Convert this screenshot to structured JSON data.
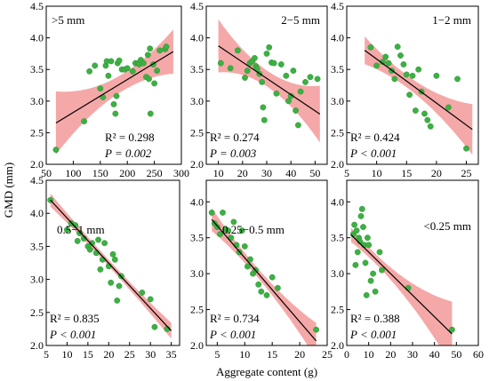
{
  "figure": {
    "ylabel": "GMD (mm)",
    "xlabel": "Aggregate content (g)"
  },
  "colors": {
    "points": "#3cb043",
    "points_edge": "#2a8a30",
    "band": "#f28b8b",
    "fit": "#000000"
  },
  "chart_data": [
    {
      "type": "scatter",
      "panel_label": ">5 mm",
      "stats": {
        "r2": "R² = 0.298",
        "p": "P = 0.002"
      },
      "xlim": [
        50,
        300
      ],
      "ylim": [
        2.0,
        4.5
      ],
      "xticks": [
        50,
        100,
        150,
        200,
        250,
        300
      ],
      "yticks": [
        2.0,
        2.5,
        3.0,
        3.5,
        4.0,
        4.5
      ],
      "fit": {
        "slope": 0.0052,
        "intercept": 2.3,
        "x_range": [
          68,
          285
        ]
      },
      "band": {
        "halfwidth_at": [
          [
            68,
            0.5
          ],
          [
            175,
            0.14
          ],
          [
            285,
            0.35
          ]
        ]
      },
      "points": [
        [
          68,
          2.23
        ],
        [
          120,
          2.68
        ],
        [
          130,
          3.47
        ],
        [
          140,
          3.56
        ],
        [
          150,
          3.2
        ],
        [
          155,
          3.06
        ],
        [
          160,
          3.56
        ],
        [
          162,
          3.63
        ],
        [
          170,
          3.63
        ],
        [
          165,
          3.4
        ],
        [
          175,
          2.95
        ],
        [
          178,
          2.8
        ],
        [
          180,
          3.08
        ],
        [
          182,
          3.6
        ],
        [
          185,
          3.64
        ],
        [
          190,
          3.5
        ],
        [
          195,
          3.5
        ],
        [
          200,
          3.52
        ],
        [
          210,
          3.47
        ],
        [
          215,
          3.6
        ],
        [
          220,
          3.6
        ],
        [
          222,
          3.58
        ],
        [
          225,
          3.65
        ],
        [
          230,
          3.6
        ],
        [
          235,
          3.38
        ],
        [
          238,
          3.73
        ],
        [
          240,
          3.35
        ],
        [
          242,
          3.83
        ],
        [
          243,
          2.8
        ],
        [
          248,
          3.58
        ],
        [
          250,
          3.28
        ],
        [
          255,
          3.48
        ],
        [
          260,
          3.8
        ],
        [
          270,
          3.82
        ],
        [
          272,
          3.86
        ]
      ]
    },
    {
      "type": "scatter",
      "panel_label": "2−5 mm",
      "stats": {
        "r2": "R² = 0.274",
        "p": "P = 0.003"
      },
      "xlim": [
        5,
        55
      ],
      "ylim": [
        2.0,
        4.5
      ],
      "xticks": [
        10,
        20,
        30,
        40,
        50
      ],
      "yticks": [
        2.0,
        2.5,
        3.0,
        3.5,
        4.0,
        4.5
      ],
      "fit": {
        "slope": -0.0257,
        "intercept": 4.13,
        "x_range": [
          10,
          52
        ]
      },
      "band": {
        "halfwidth_at": [
          [
            10,
            0.42
          ],
          [
            28,
            0.13
          ],
          [
            52,
            0.45
          ]
        ]
      },
      "points": [
        [
          11,
          3.6
        ],
        [
          15,
          3.52
        ],
        [
          18,
          3.8
        ],
        [
          21,
          3.37
        ],
        [
          22,
          3.48
        ],
        [
          23,
          3.6
        ],
        [
          24,
          3.63
        ],
        [
          25,
          3.68
        ],
        [
          25.5,
          3.55
        ],
        [
          26,
          3.51
        ],
        [
          27,
          3.43
        ],
        [
          28,
          3.3
        ],
        [
          28.5,
          2.9
        ],
        [
          29,
          2.7
        ],
        [
          30,
          3.75
        ],
        [
          31,
          3.85
        ],
        [
          32,
          3.61
        ],
        [
          33,
          3.6
        ],
        [
          34,
          3.12
        ],
        [
          36,
          3.58
        ],
        [
          38,
          3.4
        ],
        [
          39,
          3.0
        ],
        [
          40,
          3.08
        ],
        [
          41,
          3.48
        ],
        [
          42,
          2.85
        ],
        [
          43,
          2.62
        ],
        [
          44,
          3.15
        ],
        [
          46,
          3.3
        ],
        [
          48,
          3.38
        ],
        [
          51,
          3.35
        ]
      ]
    },
    {
      "type": "scatter",
      "panel_label": "1−2 mm",
      "stats": {
        "r2": "R² = 0.424",
        "p": "P < 0.001"
      },
      "xlim": [
        5,
        27
      ],
      "ylim": [
        2.0,
        4.5
      ],
      "xticks": [
        5,
        10,
        15,
        20,
        25
      ],
      "yticks": [
        2.0,
        2.5,
        3.0,
        3.5,
        4.0,
        4.5
      ],
      "fit": {
        "slope": -0.0696,
        "intercept": 4.36,
        "x_range": [
          8,
          26
        ]
      },
      "band": {
        "halfwidth_at": [
          [
            8,
            0.22
          ],
          [
            14,
            0.1
          ],
          [
            26,
            0.4
          ]
        ]
      },
      "points": [
        [
          9,
          3.85
        ],
        [
          10,
          3.56
        ],
        [
          11,
          3.62
        ],
        [
          11.5,
          3.7
        ],
        [
          12,
          3.6
        ],
        [
          12.5,
          3.48
        ],
        [
          13,
          3.35
        ],
        [
          13.5,
          3.86
        ],
        [
          14,
          3.72
        ],
        [
          14.5,
          3.58
        ],
        [
          15,
          3.42
        ],
        [
          15.5,
          3.1
        ],
        [
          16,
          3.4
        ],
        [
          16.5,
          2.85
        ],
        [
          17,
          3.5
        ],
        [
          17.5,
          3.15
        ],
        [
          18,
          2.8
        ],
        [
          18.5,
          2.7
        ],
        [
          19,
          2.6
        ],
        [
          20,
          3.4
        ],
        [
          22,
          2.9
        ],
        [
          23.5,
          3.35
        ],
        [
          25,
          2.25
        ]
      ]
    },
    {
      "type": "scatter",
      "panel_label": "0.5−1 mm",
      "stats": {
        "r2": "R² = 0.835",
        "p": "P < 0.001"
      },
      "xlim": [
        5,
        37
      ],
      "ylim": [
        2.0,
        4.5
      ],
      "xticks": [
        5,
        10,
        15,
        20,
        25,
        30,
        35
      ],
      "yticks": [
        2.0,
        2.5,
        3.0,
        3.5,
        4.0,
        4.5
      ],
      "fit": {
        "slope": -0.0682,
        "intercept": 4.61,
        "x_range": [
          6,
          35
        ]
      },
      "band": {
        "halfwidth_at": [
          [
            6,
            0.1
          ],
          [
            18,
            0.05
          ],
          [
            35,
            0.12
          ]
        ]
      },
      "points": [
        [
          6,
          4.2
        ],
        [
          10,
          3.75
        ],
        [
          11,
          3.85
        ],
        [
          12,
          3.82
        ],
        [
          12.5,
          3.58
        ],
        [
          13,
          3.7
        ],
        [
          14,
          3.62
        ],
        [
          15,
          3.5
        ],
        [
          15.5,
          3.45
        ],
        [
          16,
          3.55
        ],
        [
          17,
          3.4
        ],
        [
          17.5,
          3.6
        ],
        [
          18,
          3.15
        ],
        [
          18.5,
          3.3
        ],
        [
          19,
          3.55
        ],
        [
          20,
          3.2
        ],
        [
          20.5,
          2.95
        ],
        [
          21,
          3.38
        ],
        [
          21.5,
          3.3
        ],
        [
          22,
          2.68
        ],
        [
          22.5,
          2.9
        ],
        [
          23,
          3.05
        ],
        [
          28,
          2.8
        ],
        [
          30,
          2.7
        ],
        [
          31,
          2.28
        ],
        [
          34,
          2.25
        ]
      ]
    },
    {
      "type": "scatter",
      "panel_label": "0.25−0.5 mm",
      "stats": {
        "r2": "R² = 0.734",
        "p": "P < 0.001"
      },
      "xlim": [
        3,
        25
      ],
      "ylim": [
        2.0,
        4.3
      ],
      "xticks": [
        5,
        10,
        15,
        20,
        25
      ],
      "yticks": [
        2.0,
        2.5,
        3.0,
        3.5,
        4.0
      ],
      "fit": {
        "slope": -0.089,
        "intercept": 4.11,
        "x_range": [
          4,
          23
        ]
      },
      "band": {
        "halfwidth_at": [
          [
            4,
            0.16
          ],
          [
            10,
            0.07
          ],
          [
            23,
            0.25
          ]
        ]
      },
      "points": [
        [
          4,
          3.85
        ],
        [
          4.5,
          3.7
        ],
        [
          5,
          3.65
        ],
        [
          5.5,
          3.55
        ],
        [
          6,
          3.85
        ],
        [
          6.5,
          3.62
        ],
        [
          7,
          3.6
        ],
        [
          7.5,
          3.5
        ],
        [
          8,
          3.72
        ],
        [
          8.5,
          3.4
        ],
        [
          9,
          3.3
        ],
        [
          9.5,
          3.6
        ],
        [
          10,
          3.38
        ],
        [
          10.5,
          3.1
        ],
        [
          11,
          3.2
        ],
        [
          11.5,
          3.0
        ],
        [
          12,
          3.05
        ],
        [
          12.5,
          2.85
        ],
        [
          13,
          2.75
        ],
        [
          14,
          2.7
        ],
        [
          15,
          2.95
        ],
        [
          16,
          2.8
        ],
        [
          23,
          2.22
        ]
      ]
    },
    {
      "type": "scatter",
      "panel_label": "<0.25 mm",
      "stats": {
        "r2": "R² = 0.388",
        "p": "P < 0.001"
      },
      "xlim": [
        0,
        60
      ],
      "ylim": [
        2.0,
        4.3
      ],
      "xticks": [
        0,
        10,
        20,
        30,
        40,
        50,
        60
      ],
      "yticks": [
        2.0,
        2.5,
        3.0,
        3.5,
        4.0
      ],
      "fit": {
        "slope": -0.03,
        "intercept": 3.6,
        "x_range": [
          2,
          48
        ]
      },
      "band": {
        "halfwidth_at": [
          [
            2,
            0.1
          ],
          [
            10,
            0.07
          ],
          [
            48,
            0.45
          ]
        ]
      },
      "points": [
        [
          3,
          3.55
        ],
        [
          3.5,
          3.68
        ],
        [
          4,
          3.12
        ],
        [
          4.5,
          3.6
        ],
        [
          5,
          3.3
        ],
        [
          5.5,
          3.5
        ],
        [
          6,
          3.45
        ],
        [
          6.5,
          3.8
        ],
        [
          7,
          3.9
        ],
        [
          7.5,
          3.65
        ],
        [
          8,
          3.4
        ],
        [
          8.5,
          3.15
        ],
        [
          9,
          2.7
        ],
        [
          9.5,
          3.5
        ],
        [
          10,
          3.4
        ],
        [
          11,
          2.9
        ],
        [
          12,
          3.0
        ],
        [
          13,
          2.75
        ],
        [
          15,
          3.3
        ],
        [
          16,
          3.05
        ],
        [
          28,
          2.8
        ],
        [
          48,
          2.22
        ]
      ]
    }
  ]
}
